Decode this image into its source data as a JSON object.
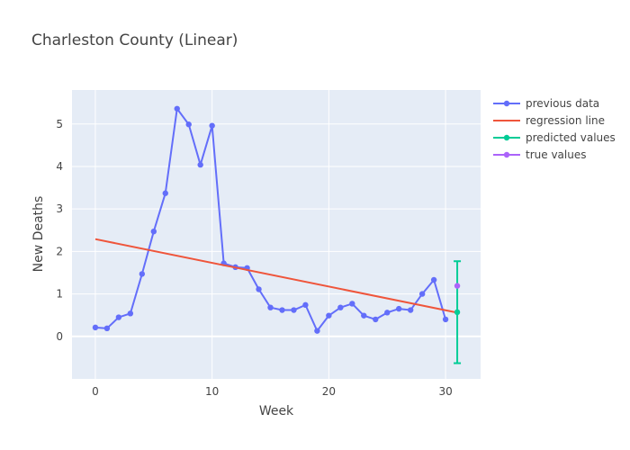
{
  "chart_data": {
    "type": "line",
    "title": "Charleston County (Linear)",
    "xlabel": "Week",
    "ylabel": "New Deaths",
    "xlim": [
      -2,
      33
    ],
    "ylim": [
      -1.0,
      5.8
    ],
    "x_ticks": [
      0,
      10,
      20,
      30
    ],
    "y_ticks": [
      0,
      1,
      2,
      3,
      4,
      5
    ],
    "grid": true,
    "legend_position": "right",
    "colors": {
      "plot_bg": "#e5ecf6",
      "grid": "#ffffff",
      "previous": "#636efa",
      "regression": "#ef553b",
      "predicted": "#00cc96",
      "true": "#ab63fa"
    },
    "series": [
      {
        "name": "previous data",
        "mode": "lines+markers",
        "x": [
          0,
          1,
          2,
          3,
          4,
          5,
          6,
          7,
          8,
          9,
          10,
          11,
          12,
          13,
          14,
          15,
          16,
          17,
          18,
          19,
          20,
          21,
          22,
          23,
          24,
          25,
          26,
          27,
          28,
          29,
          30
        ],
        "y": [
          0.21,
          0.19,
          0.45,
          0.54,
          1.47,
          2.47,
          3.37,
          5.36,
          4.99,
          4.04,
          4.96,
          1.72,
          1.63,
          1.61,
          1.11,
          0.68,
          0.62,
          0.62,
          0.74,
          0.13,
          0.49,
          0.68,
          0.77,
          0.49,
          0.4,
          0.56,
          0.65,
          0.62,
          1.0,
          1.33,
          0.4
        ]
      },
      {
        "name": "regression line",
        "mode": "lines",
        "x": [
          0,
          31
        ],
        "y": [
          2.29,
          0.56
        ]
      },
      {
        "name": "predicted values",
        "mode": "markers+error",
        "x": [
          31
        ],
        "y": [
          0.57
        ],
        "error_low": [
          -0.63
        ],
        "error_high": [
          1.77
        ]
      },
      {
        "name": "true values",
        "mode": "markers",
        "x": [
          31
        ],
        "y": [
          1.19
        ]
      }
    ]
  }
}
